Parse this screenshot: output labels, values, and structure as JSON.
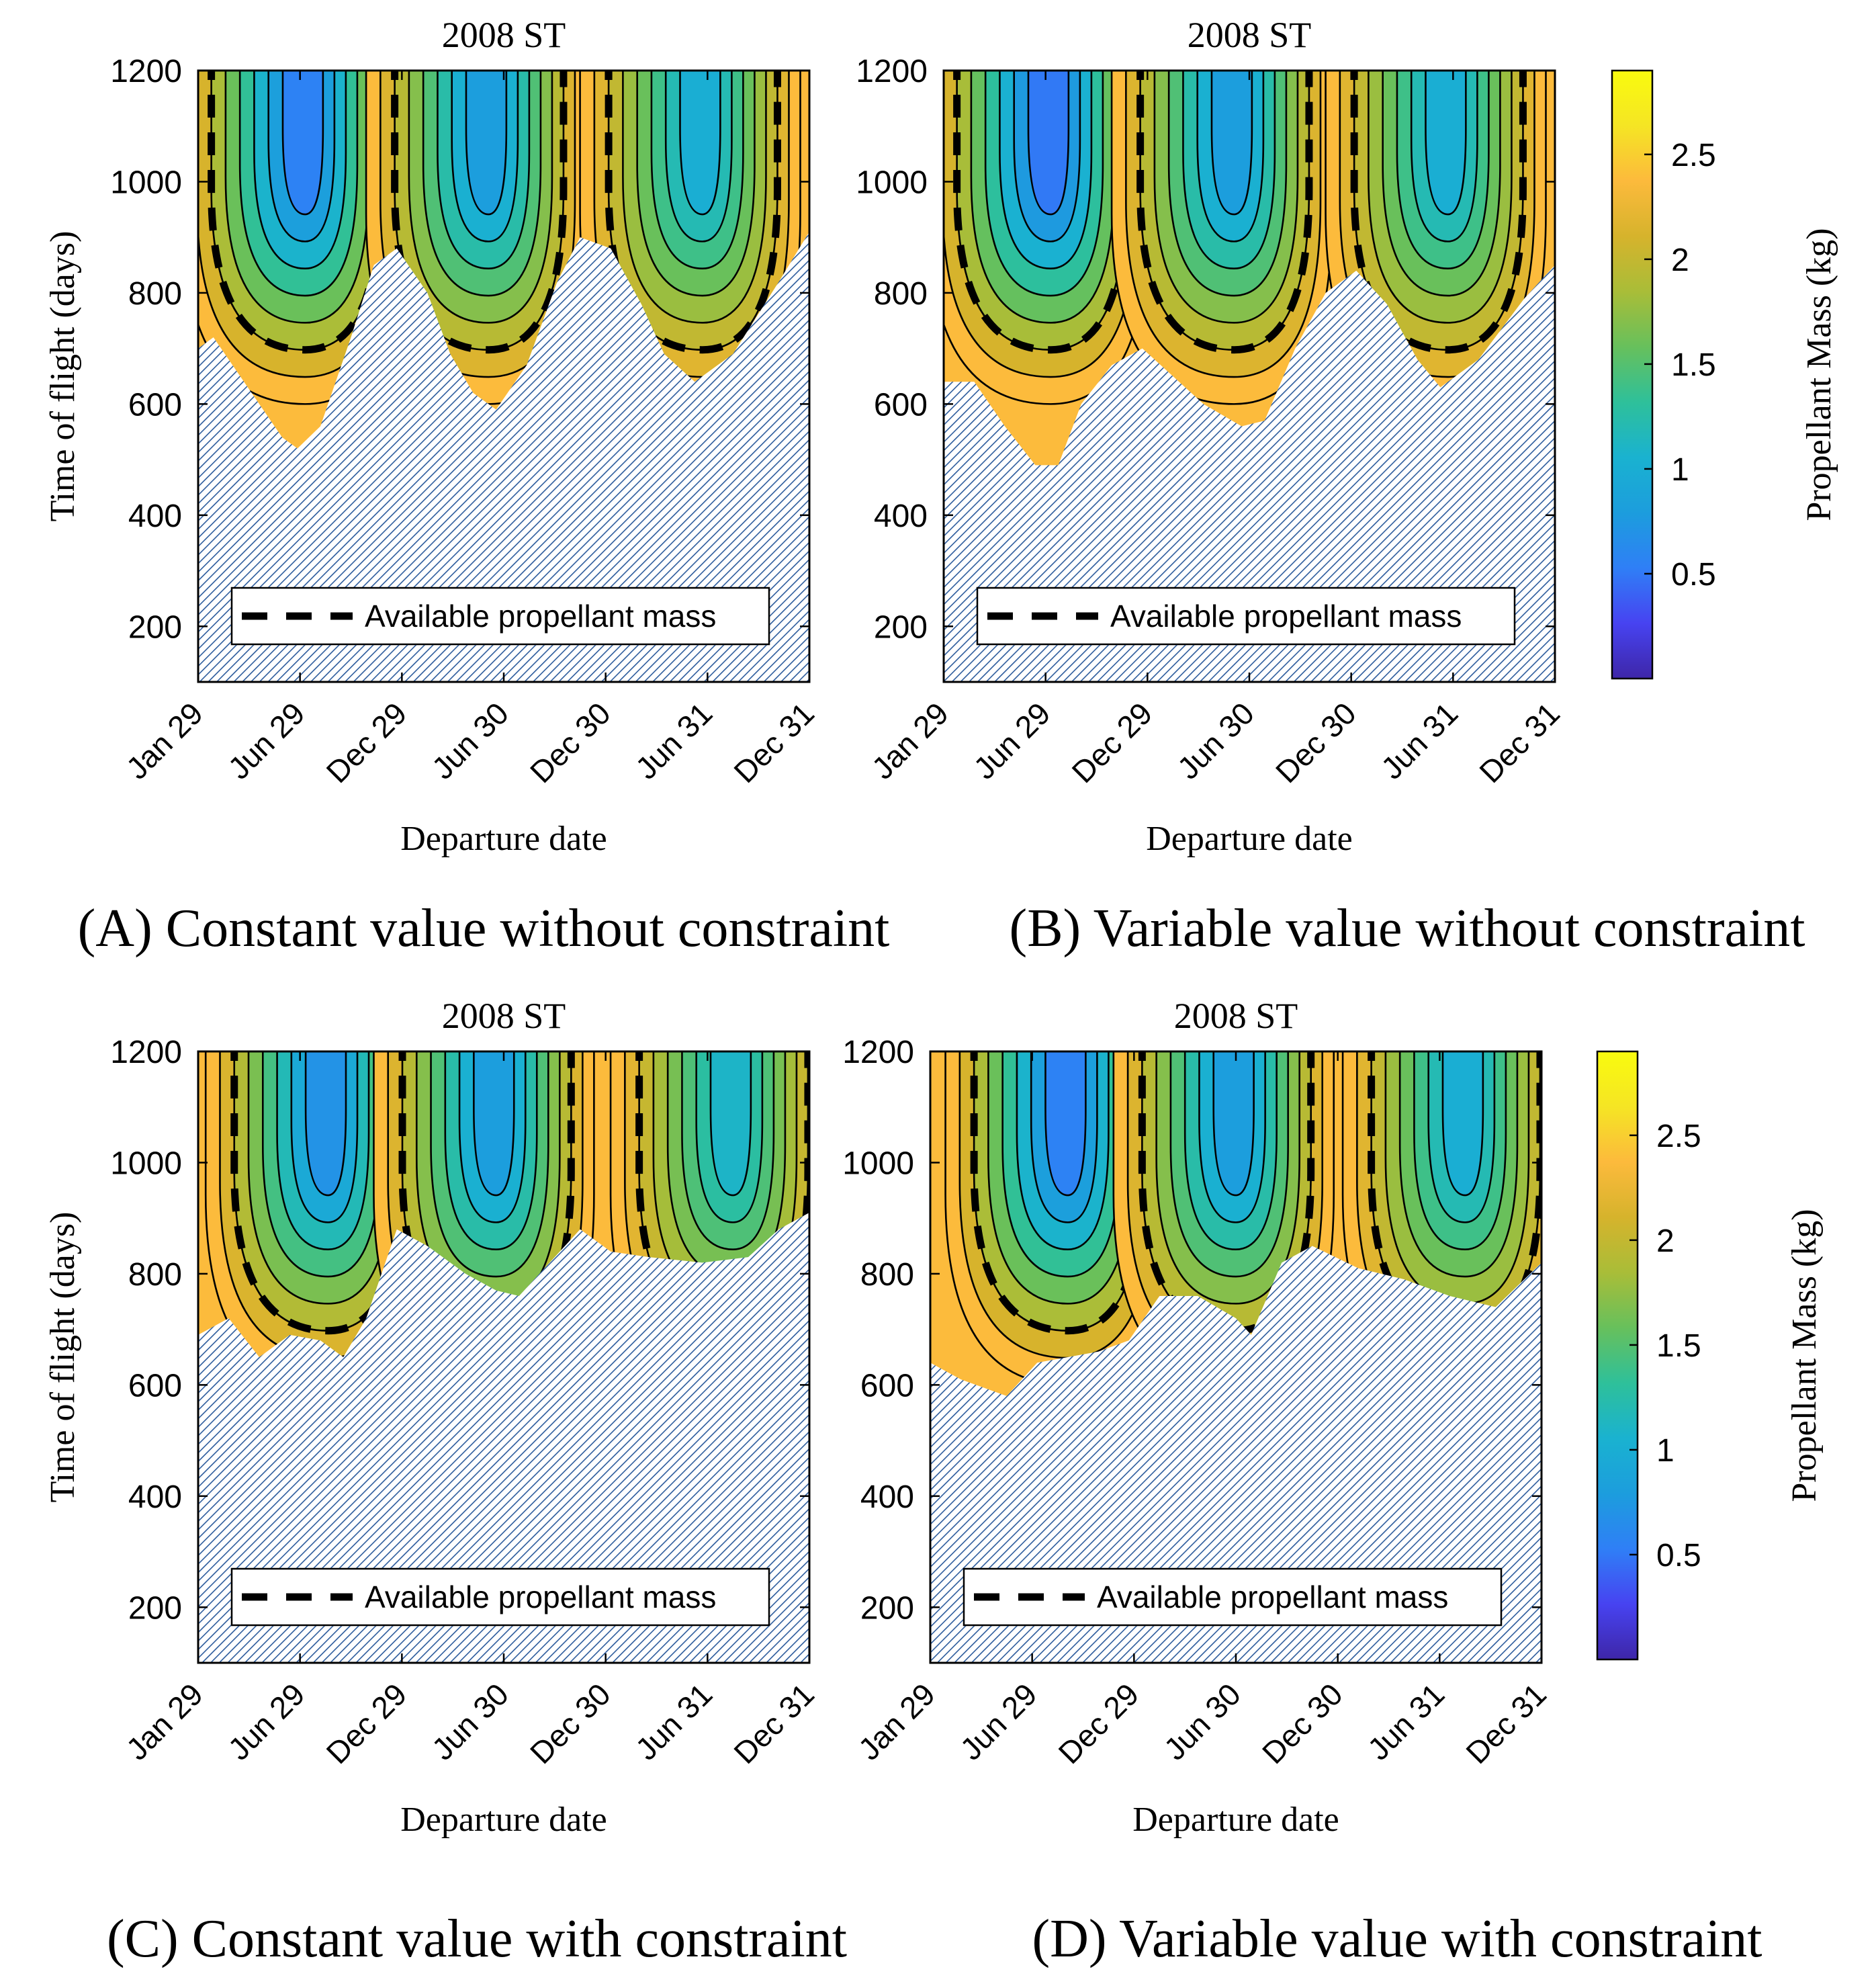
{
  "figure": {
    "subplots": [
      {
        "id": "A",
        "caption": "(A) Constant value without constraint"
      },
      {
        "id": "B",
        "caption": "(B) Variable value without constraint"
      },
      {
        "id": "C",
        "caption": "(C) Constant value with constraint"
      },
      {
        "id": "D",
        "caption": "(D) Variable value with constraint"
      }
    ]
  },
  "colors": {
    "hatch": "#2c5b9c",
    "contour_line": "#000000",
    "axis": "#000000",
    "colormap": [
      "#3e26a8",
      "#4743f1",
      "#2f7ff6",
      "#1c9ddd",
      "#1ab2d0",
      "#2ec09a",
      "#67c05c",
      "#a9bd38",
      "#d6b32c",
      "#fcba3c",
      "#f5e524",
      "#f9fb0e"
    ]
  },
  "chart_data": [
    {
      "type": "contour",
      "panel": "A",
      "title": "2008 ST",
      "xlabel": "Departure date",
      "ylabel": "Time of flight (days)",
      "x_ticks": [
        "Jan 29",
        "Jun 29",
        "Dec 29",
        "Jun 30",
        "Dec 30",
        "Jun 31",
        "Dec 31"
      ],
      "y_ticks": [
        200,
        400,
        600,
        800,
        1000,
        1200
      ],
      "ylim": [
        100,
        1200
      ],
      "legend": "Available propellant mass",
      "legend_location": "bottom",
      "infeasible_boundary_tof": [
        [
          0,
          700
        ],
        [
          0.1,
          720
        ],
        [
          0.35,
          620
        ],
        [
          0.55,
          540
        ],
        [
          0.65,
          520
        ],
        [
          0.8,
          560
        ],
        [
          1.0,
          720
        ],
        [
          1.15,
          850
        ],
        [
          1.3,
          880
        ],
        [
          1.5,
          800
        ],
        [
          1.65,
          690
        ],
        [
          1.8,
          620
        ],
        [
          1.95,
          590
        ],
        [
          2.15,
          670
        ],
        [
          2.35,
          820
        ],
        [
          2.5,
          900
        ],
        [
          2.7,
          880
        ],
        [
          2.9,
          780
        ],
        [
          3.05,
          690
        ],
        [
          3.25,
          640
        ],
        [
          3.5,
          690
        ],
        [
          3.8,
          820
        ],
        [
          4.0,
          910
        ]
      ],
      "minima": [
        {
          "x": 0.7,
          "tof": 1150,
          "mass": 0.55
        },
        {
          "x": 1.9,
          "tof": 1150,
          "mass": 0.8
        },
        {
          "x": 3.3,
          "tof": 1150,
          "mass": 1.0
        }
      ],
      "colorbar": {
        "label": "Propellant Mass (kg)",
        "ticks": [
          0.5,
          1,
          1.5,
          2,
          2.5
        ],
        "range": [
          0,
          2.9
        ]
      }
    },
    {
      "type": "contour",
      "panel": "B",
      "title": "2008 ST",
      "xlabel": "Departure date",
      "ylabel": "",
      "x_ticks": [
        "Jan 29",
        "Jun 29",
        "Dec 29",
        "Jun 30",
        "Dec 30",
        "Jun 31",
        "Dec 31"
      ],
      "y_ticks": [
        200,
        400,
        600,
        800,
        1000,
        1200
      ],
      "ylim": [
        100,
        1200
      ],
      "legend": "Available propellant mass",
      "legend_location": "bottom",
      "infeasible_boundary_tof": [
        [
          0,
          640
        ],
        [
          0.2,
          640
        ],
        [
          0.4,
          560
        ],
        [
          0.6,
          490
        ],
        [
          0.75,
          490
        ],
        [
          0.9,
          600
        ],
        [
          1.1,
          670
        ],
        [
          1.3,
          700
        ],
        [
          1.5,
          650
        ],
        [
          1.7,
          600
        ],
        [
          1.95,
          560
        ],
        [
          2.1,
          570
        ],
        [
          2.3,
          700
        ],
        [
          2.5,
          800
        ],
        [
          2.7,
          840
        ],
        [
          2.9,
          780
        ],
        [
          3.1,
          680
        ],
        [
          3.25,
          630
        ],
        [
          3.5,
          680
        ],
        [
          3.8,
          790
        ],
        [
          4.0,
          850
        ]
      ],
      "minima": [
        {
          "x": 0.7,
          "tof": 1150,
          "mass": 0.5
        },
        {
          "x": 1.9,
          "tof": 1150,
          "mass": 0.8
        },
        {
          "x": 3.3,
          "tof": 1150,
          "mass": 1.0
        }
      ],
      "colorbar": {
        "label": "Propellant Mass (kg)",
        "ticks": [
          0.5,
          1,
          1.5,
          2,
          2.5
        ],
        "range": [
          0,
          2.9
        ]
      }
    },
    {
      "type": "contour",
      "panel": "C",
      "title": "2008 ST",
      "xlabel": "Departure date",
      "ylabel": "Time of flight (days)",
      "x_ticks": [
        "Jan 29",
        "Jun 29",
        "Dec 29",
        "Jun 30",
        "Dec 30",
        "Jun 31",
        "Dec 31"
      ],
      "y_ticks": [
        200,
        400,
        600,
        800,
        1000,
        1200
      ],
      "ylim": [
        100,
        1200
      ],
      "legend": "Available propellant mass",
      "legend_location": "bottom",
      "infeasible_boundary_tof": [
        [
          0,
          690
        ],
        [
          0.2,
          720
        ],
        [
          0.4,
          650
        ],
        [
          0.6,
          690
        ],
        [
          0.8,
          680
        ],
        [
          0.95,
          650
        ],
        [
          1.1,
          720
        ],
        [
          1.3,
          880
        ],
        [
          1.5,
          850
        ],
        [
          1.75,
          800
        ],
        [
          1.95,
          770
        ],
        [
          2.1,
          760
        ],
        [
          2.3,
          820
        ],
        [
          2.5,
          880
        ],
        [
          2.7,
          840
        ],
        [
          2.95,
          830
        ],
        [
          3.3,
          820
        ],
        [
          3.6,
          830
        ],
        [
          3.8,
          880
        ],
        [
          4.0,
          910
        ]
      ],
      "minima": [
        {
          "x": 0.85,
          "tof": 1100,
          "mass": 0.7
        },
        {
          "x": 1.95,
          "tof": 1150,
          "mass": 0.8
        },
        {
          "x": 3.5,
          "tof": 1150,
          "mass": 1.1
        }
      ],
      "colorbar": null
    },
    {
      "type": "contour",
      "panel": "D",
      "title": "2008 ST",
      "xlabel": "Departure date",
      "ylabel": "",
      "x_ticks": [
        "Jan 29",
        "Jun 29",
        "Dec 29",
        "Jun 30",
        "Dec 30",
        "Jun 31",
        "Dec 31"
      ],
      "y_ticks": [
        200,
        400,
        600,
        800,
        1000,
        1200
      ],
      "ylim": [
        100,
        1200
      ],
      "legend": "Available propellant mass",
      "legend_location": "bottom",
      "infeasible_boundary_tof": [
        [
          0,
          640
        ],
        [
          0.2,
          610
        ],
        [
          0.5,
          580
        ],
        [
          0.7,
          640
        ],
        [
          0.9,
          650
        ],
        [
          1.1,
          660
        ],
        [
          1.3,
          680
        ],
        [
          1.5,
          760
        ],
        [
          1.75,
          760
        ],
        [
          2.0,
          720
        ],
        [
          2.1,
          690
        ],
        [
          2.3,
          820
        ],
        [
          2.5,
          850
        ],
        [
          2.8,
          810
        ],
        [
          3.1,
          790
        ],
        [
          3.4,
          760
        ],
        [
          3.7,
          740
        ],
        [
          4.0,
          820
        ]
      ],
      "minima": [
        {
          "x": 0.9,
          "tof": 1150,
          "mass": 0.55
        },
        {
          "x": 2.0,
          "tof": 1150,
          "mass": 0.8
        },
        {
          "x": 3.5,
          "tof": 1150,
          "mass": 1.0
        }
      ],
      "colorbar": {
        "label": "Propellant Mass (kg)",
        "ticks": [
          0.5,
          1,
          1.5,
          2,
          2.5
        ],
        "range": [
          0,
          2.9
        ]
      }
    }
  ]
}
